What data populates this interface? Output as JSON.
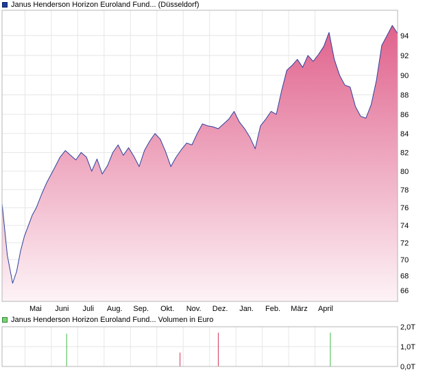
{
  "chart_data": [
    {
      "type": "area",
      "legend": "Janus Henderson Horizon Euroland Fund... (Düsseldorf)",
      "legend_color": "#1f3d99",
      "line_color": "#2a3f9d",
      "fill_top_color": "#e0628c",
      "fill_bottom_color": "#fdf3f7",
      "grid": true,
      "ylim": [
        64.3,
        96.5
      ],
      "y_ticks": [
        66,
        68,
        70,
        72,
        74,
        76,
        78,
        80,
        82,
        84,
        86,
        88,
        90,
        92,
        94
      ],
      "x_ticks": [
        "Mai",
        "Juni",
        "Juli",
        "Aug.",
        "Sep.",
        "Okt.",
        "Nov.",
        "Dez.",
        "Jan.",
        "Feb.",
        "März",
        "April"
      ],
      "series": [
        {
          "x": [
            0,
            0.2,
            0.4,
            0.55,
            0.7,
            0.85,
            1.0,
            1.15,
            1.3,
            1.5,
            1.7,
            2.0,
            2.2,
            2.4,
            2.6,
            2.8,
            3.0,
            3.2,
            3.4,
            3.6,
            3.8,
            4.0,
            4.2,
            4.4,
            4.6,
            4.8,
            5.0,
            5.2,
            5.4,
            5.6,
            5.8,
            6.0,
            6.2,
            6.4,
            6.6,
            6.8,
            7.0,
            7.2,
            7.4,
            7.6,
            7.8,
            8.0,
            8.2,
            8.4,
            8.6,
            8.8,
            9.0,
            9.2,
            9.4,
            9.6,
            9.8,
            10.0,
            10.2,
            10.4,
            10.6,
            10.8,
            11.0,
            11.2,
            11.4,
            11.6,
            11.8,
            12.0,
            12.2,
            12.4,
            12.6,
            12.8,
            13.0,
            13.2,
            13.4,
            13.6,
            13.8,
            14.0,
            14.2,
            14.4,
            14.6,
            14.8,
            15.0
          ],
          "values": [
            76.5,
            70.5,
            67.0,
            68.5,
            71.0,
            72.8,
            74.0,
            75.2,
            76.0,
            77.5,
            78.8,
            80.4,
            81.5,
            82.2,
            81.7,
            81.2,
            82.0,
            81.5,
            80.0,
            81.3,
            79.7,
            80.6,
            82.0,
            82.8,
            81.7,
            82.5,
            81.6,
            80.5,
            82.2,
            83.2,
            84.0,
            83.4,
            82.1,
            80.5,
            81.5,
            82.3,
            83.0,
            82.8,
            84.0,
            85.0,
            84.8,
            84.7,
            84.5,
            85.0,
            85.5,
            86.3,
            85.2,
            84.5,
            83.6,
            82.4,
            84.8,
            85.5,
            86.3,
            86.0,
            88.4,
            90.5,
            91.0,
            91.6,
            90.8,
            92.0,
            91.4,
            92.1,
            92.9,
            94.3,
            91.6,
            90.0,
            89.0,
            88.8,
            86.8,
            85.8,
            85.6,
            87.0,
            89.5,
            93.0,
            94.0,
            95.0,
            94.2
          ]
        }
      ]
    },
    {
      "type": "bar",
      "legend": "Janus Henderson Horizon Euroland Fund... Volumen in Euro",
      "legend_color": "#7dd17d",
      "grid": true,
      "ylim": [
        0,
        2.0
      ],
      "y_ticks": [
        "0,0T",
        "1,0T",
        "2,0T"
      ],
      "series": [
        {
          "x": [
            2.45,
            6.75,
            8.2,
            12.45
          ],
          "values": [
            1.65,
            0.7,
            1.7,
            1.7
          ],
          "colors": [
            "#3db84a",
            "#cc3355",
            "#cc3355",
            "#3db84a"
          ]
        }
      ]
    }
  ]
}
